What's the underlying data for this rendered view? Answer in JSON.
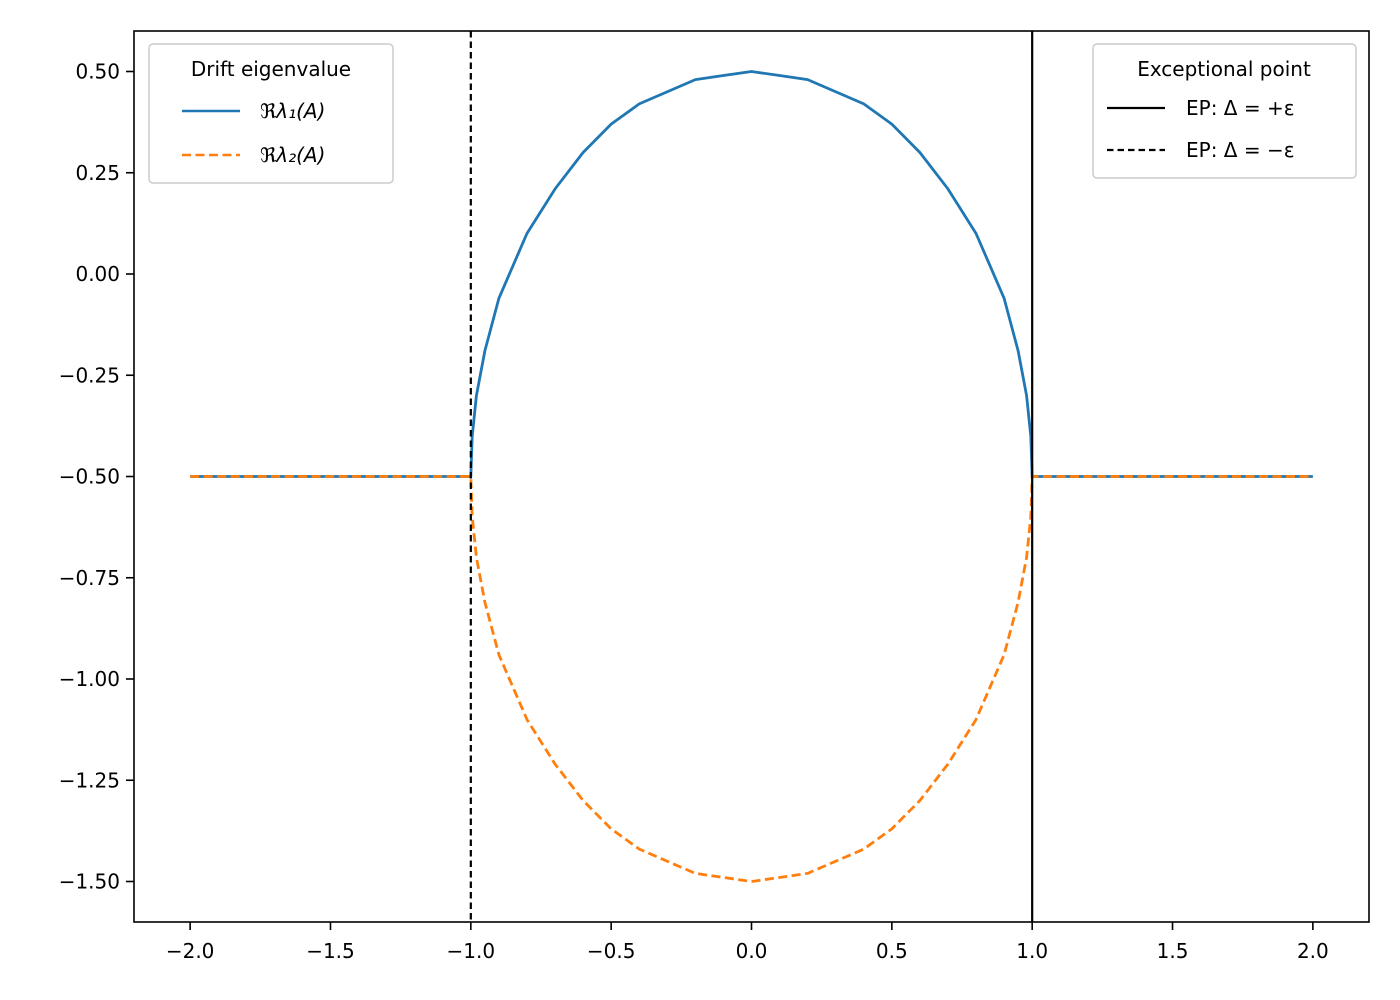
{
  "chart_data": {
    "type": "line",
    "title": "",
    "xlabel": "",
    "ylabel": "",
    "xlim": [
      -2.2,
      2.2
    ],
    "ylim": [
      -1.6,
      0.6
    ],
    "xticks": [
      -2.0,
      -1.5,
      -1.0,
      -0.5,
      0.0,
      0.5,
      1.0,
      1.5,
      2.0
    ],
    "xtick_labels": [
      "−2.0",
      "−1.5",
      "−1.0",
      "−0.5",
      "0.0",
      "0.5",
      "1.0",
      "1.5",
      "2.0"
    ],
    "yticks": [
      0.5,
      0.25,
      0.0,
      -0.25,
      -0.5,
      -0.75,
      -1.0,
      -1.25,
      -1.5
    ],
    "ytick_labels": [
      "0.50",
      "0.25",
      "0.00",
      "−0.25",
      "−0.50",
      "−0.75",
      "−1.00",
      "−1.25",
      "−1.50"
    ],
    "grid": false,
    "series": [
      {
        "name": "ℜλ₁(A)",
        "color": "#1f77b4",
        "linestyle": "solid",
        "x": [
          -2.0,
          -1.5,
          -1.0,
          -0.995,
          -0.98,
          -0.95,
          -0.9,
          -0.8,
          -0.7,
          -0.6,
          -0.5,
          -0.4,
          -0.3,
          -0.2,
          -0.1,
          0.0,
          0.1,
          0.2,
          0.3,
          0.4,
          0.5,
          0.6,
          0.7,
          0.8,
          0.9,
          0.95,
          0.98,
          0.995,
          1.0,
          1.5,
          2.0
        ],
        "y": [
          -0.5,
          -0.5,
          -0.5,
          -0.4,
          -0.3,
          -0.19,
          -0.06,
          0.1,
          0.21,
          0.3,
          0.37,
          0.42,
          0.45,
          0.48,
          0.49,
          0.5,
          0.49,
          0.48,
          0.45,
          0.42,
          0.37,
          0.3,
          0.21,
          0.1,
          -0.06,
          -0.19,
          -0.3,
          -0.4,
          -0.5,
          -0.5,
          -0.5
        ]
      },
      {
        "name": "ℜλ₂(A)",
        "color": "#ff7f0e",
        "linestyle": "dashed",
        "x": [
          -2.0,
          -1.5,
          -1.0,
          -0.995,
          -0.98,
          -0.95,
          -0.9,
          -0.8,
          -0.7,
          -0.6,
          -0.5,
          -0.4,
          -0.3,
          -0.2,
          -0.1,
          0.0,
          0.1,
          0.2,
          0.3,
          0.4,
          0.5,
          0.6,
          0.7,
          0.8,
          0.9,
          0.95,
          0.98,
          0.995,
          1.0,
          1.5,
          2.0
        ],
        "y": [
          -0.5,
          -0.5,
          -0.5,
          -0.6,
          -0.7,
          -0.81,
          -0.94,
          -1.1,
          -1.21,
          -1.3,
          -1.37,
          -1.42,
          -1.45,
          -1.48,
          -1.49,
          -1.5,
          -1.49,
          -1.48,
          -1.45,
          -1.42,
          -1.37,
          -1.3,
          -1.21,
          -1.1,
          -0.94,
          -0.81,
          -0.7,
          -0.6,
          -0.5,
          -0.5,
          -0.5
        ]
      }
    ],
    "vlines": [
      {
        "name": "EP: Δ = +ε",
        "x": 1.0,
        "color": "#000000",
        "linestyle": "solid"
      },
      {
        "name": "EP: Δ = −ε",
        "x": -1.0,
        "color": "#000000",
        "linestyle": "dashed"
      }
    ],
    "legends": [
      {
        "title": "Drift eigenvalue",
        "placement": "upper-left",
        "entries": [
          {
            "label": "ℜλ₁(A)",
            "color": "#1f77b4",
            "linestyle": "solid"
          },
          {
            "label": "ℜλ₂(A)",
            "color": "#ff7f0e",
            "linestyle": "dashed"
          }
        ]
      },
      {
        "title": "Exceptional point",
        "placement": "upper-right",
        "entries": [
          {
            "label": "EP: Δ = +ε",
            "color": "#000000",
            "linestyle": "solid"
          },
          {
            "label": "EP: Δ = −ε",
            "color": "#000000",
            "linestyle": "dashed"
          }
        ]
      }
    ]
  }
}
